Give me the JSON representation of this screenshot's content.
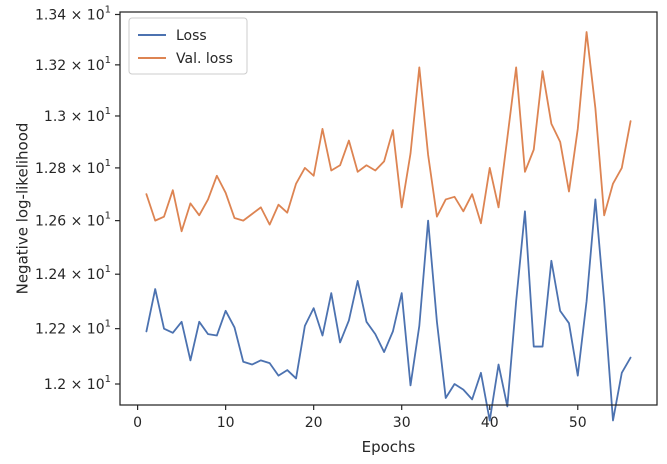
{
  "chart_data": {
    "type": "line",
    "xlabel": "Epochs",
    "ylabel": "Negative log-likelihood",
    "xlim": [
      -2,
      59
    ],
    "ylim": [
      11.925,
      13.41
    ],
    "y_scale": "log",
    "x_ticks": [
      0,
      10,
      20,
      30,
      40,
      50
    ],
    "x_tick_labels": [
      "0",
      "10",
      "20",
      "30",
      "40",
      "50"
    ],
    "y_ticks": [
      12.0,
      12.2,
      12.4,
      12.6,
      12.8,
      13.0,
      13.2,
      13.4
    ],
    "y_tick_labels": [
      {
        "base": "1.2",
        "exp": "1"
      },
      {
        "base": "1.22",
        "exp": "1"
      },
      {
        "base": "1.24",
        "exp": "1"
      },
      {
        "base": "1.26",
        "exp": "1"
      },
      {
        "base": "1.28",
        "exp": "1"
      },
      {
        "base": "1.3",
        "exp": "1"
      },
      {
        "base": "1.32",
        "exp": "1"
      },
      {
        "base": "1.34",
        "exp": "1"
      }
    ],
    "tick_times": "× 10",
    "grid": false,
    "legend_position": "top-left",
    "x": [
      1,
      2,
      3,
      4,
      5,
      6,
      7,
      8,
      9,
      10,
      11,
      12,
      13,
      14,
      15,
      16,
      17,
      18,
      19,
      20,
      21,
      22,
      23,
      24,
      25,
      26,
      27,
      28,
      29,
      30,
      31,
      32,
      33,
      34,
      35,
      36,
      37,
      38,
      39,
      40,
      41,
      42,
      43,
      44,
      45,
      46,
      47,
      48,
      49,
      50,
      51,
      52,
      53,
      54,
      55,
      56
    ],
    "series": [
      {
        "name": "Loss",
        "color": "#4c72b0",
        "values": [
          12.19,
          12.345,
          12.2,
          12.185,
          12.225,
          12.085,
          12.225,
          12.18,
          12.175,
          12.265,
          12.205,
          12.08,
          12.07,
          12.085,
          12.075,
          12.03,
          12.05,
          12.02,
          12.21,
          12.275,
          12.175,
          12.33,
          12.15,
          12.23,
          12.375,
          12.225,
          12.18,
          12.115,
          12.19,
          12.33,
          11.995,
          12.21,
          12.6,
          12.225,
          11.95,
          12.0,
          11.98,
          11.945,
          12.04,
          11.87,
          12.07,
          11.92,
          12.3,
          12.635,
          12.135,
          12.135,
          12.45,
          12.265,
          12.22,
          12.03,
          12.3,
          12.68,
          12.3,
          11.87,
          12.04,
          12.095
        ]
      },
      {
        "name": "Val. loss",
        "color": "#dd8452",
        "values": [
          12.7,
          12.6,
          12.615,
          12.715,
          12.56,
          12.665,
          12.62,
          12.68,
          12.77,
          12.705,
          12.61,
          12.6,
          12.625,
          12.65,
          12.585,
          12.66,
          12.63,
          12.74,
          12.8,
          12.77,
          12.95,
          12.79,
          12.81,
          12.905,
          12.785,
          12.81,
          12.79,
          12.825,
          12.945,
          12.65,
          12.855,
          13.19,
          12.85,
          12.615,
          12.68,
          12.69,
          12.635,
          12.7,
          12.59,
          12.8,
          12.65,
          12.915,
          13.19,
          12.785,
          12.87,
          13.175,
          12.97,
          12.9,
          12.71,
          12.95,
          13.33,
          13.03,
          12.62,
          12.74,
          12.8,
          12.98
        ]
      }
    ]
  }
}
